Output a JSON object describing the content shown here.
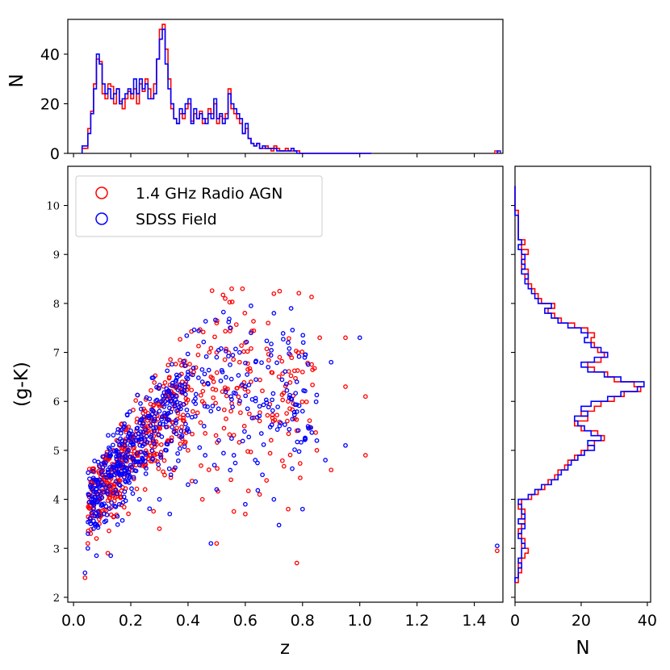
{
  "colors": {
    "radio": "#ff0000",
    "field": "#0000ff",
    "axis": "#000000"
  },
  "chart_data": [
    {
      "panel": "top-histogram",
      "type": "histogram",
      "xlabel": "",
      "ylabel": "N",
      "xlim": [
        -0.02,
        1.5
      ],
      "ylim": [
        0,
        54
      ],
      "yticks": [
        0,
        20,
        40
      ],
      "ytick_labels": [
        "0",
        "20",
        "40"
      ],
      "bin_edges": [
        0.03,
        0.05,
        0.06,
        0.07,
        0.08,
        0.09,
        0.1,
        0.11,
        0.12,
        0.13,
        0.14,
        0.15,
        0.16,
        0.17,
        0.18,
        0.19,
        0.2,
        0.21,
        0.22,
        0.23,
        0.24,
        0.25,
        0.26,
        0.27,
        0.28,
        0.29,
        0.3,
        0.31,
        0.32,
        0.33,
        0.34,
        0.35,
        0.36,
        0.37,
        0.38,
        0.39,
        0.4,
        0.41,
        0.42,
        0.43,
        0.44,
        0.45,
        0.46,
        0.47,
        0.48,
        0.49,
        0.5,
        0.51,
        0.52,
        0.53,
        0.54,
        0.55,
        0.56,
        0.57,
        0.58,
        0.59,
        0.6,
        0.61,
        0.62,
        0.63,
        0.64,
        0.65,
        0.66,
        0.67,
        0.68,
        0.69,
        0.7,
        0.71,
        0.72,
        0.73,
        0.74,
        0.75,
        0.76,
        0.77,
        0.78,
        0.79,
        0.8,
        0.81,
        0.82,
        0.83,
        0.84,
        0.85,
        0.86,
        0.87,
        0.88,
        0.89,
        0.9,
        0.91,
        0.92,
        0.93,
        0.94,
        0.95,
        0.96,
        0.97,
        0.98,
        0.99,
        1.0,
        1.01,
        1.02,
        1.03,
        1.04
      ],
      "series": [
        {
          "name": "1.4 GHz Radio AGN",
          "color": "#ff0000",
          "counts": [
            2,
            10,
            17,
            28,
            38,
            37,
            24,
            22,
            28,
            27,
            20,
            26,
            21,
            18,
            22,
            25,
            22,
            26,
            20,
            28,
            25,
            30,
            26,
            22,
            28,
            38,
            50,
            52,
            42,
            30,
            18,
            14,
            12,
            16,
            14,
            18,
            20,
            13,
            16,
            14,
            17,
            12,
            14,
            18,
            16,
            20,
            12,
            15,
            14,
            16,
            26,
            18,
            16,
            14,
            12,
            8,
            10,
            6,
            4,
            3,
            4,
            2,
            2,
            3,
            2,
            1,
            3,
            2,
            1,
            1,
            2,
            1,
            1,
            1,
            1,
            0,
            0,
            0,
            0,
            0,
            0,
            0,
            0,
            0,
            0,
            0,
            0,
            0,
            0,
            0,
            0,
            0,
            0,
            0,
            0,
            0,
            0,
            0,
            0,
            0
          ]
        },
        {
          "name": "SDSS Field",
          "color": "#0000ff",
          "counts": [
            3,
            8,
            16,
            26,
            40,
            36,
            28,
            24,
            26,
            22,
            24,
            26,
            20,
            22,
            24,
            26,
            24,
            30,
            24,
            30,
            26,
            28,
            22,
            22,
            24,
            38,
            46,
            50,
            36,
            26,
            20,
            14,
            12,
            18,
            16,
            20,
            22,
            12,
            18,
            14,
            16,
            14,
            12,
            16,
            14,
            22,
            14,
            16,
            12,
            14,
            24,
            20,
            18,
            16,
            14,
            8,
            12,
            6,
            4,
            3,
            4,
            2,
            3,
            2,
            2,
            2,
            2,
            1,
            1,
            1,
            1,
            1,
            2,
            1,
            0,
            0,
            0,
            0,
            0,
            0,
            0,
            0,
            0,
            0,
            0,
            0,
            0,
            0,
            0,
            0,
            0,
            0,
            0,
            0,
            0,
            0,
            0,
            0,
            0,
            0
          ]
        }
      ],
      "outlier_bins": [
        {
          "z": 1.48,
          "radio": 1,
          "field": 1
        }
      ]
    },
    {
      "panel": "scatter",
      "type": "scatter",
      "xlabel": "z",
      "ylabel": "(g-K)",
      "xlim": [
        -0.02,
        1.5
      ],
      "ylim": [
        1.9,
        10.8
      ],
      "xticks": [
        0.0,
        0.2,
        0.4,
        0.6,
        0.8,
        1.0,
        1.2,
        1.4
      ],
      "xtick_labels": [
        "0.0",
        "0.2",
        "0.4",
        "0.6",
        "0.8",
        "1.0",
        "1.2",
        "1.4"
      ],
      "yticks": [
        2,
        3,
        4,
        5,
        6,
        7,
        8,
        9,
        10
      ],
      "ytick_labels": [
        "2",
        "3",
        "4",
        "5",
        "6",
        "7",
        "8",
        "9",
        "10"
      ],
      "legend": {
        "position": "top-left",
        "entries": [
          "1.4 GHz Radio AGN",
          "SDSS Field"
        ]
      },
      "series": [
        {
          "name": "1.4 GHz Radio AGN",
          "color": "#ff0000",
          "points": [
            [
              0.04,
              2.4
            ],
            [
              0.05,
              3.1
            ],
            [
              0.06,
              3.6
            ],
            [
              0.07,
              3.9
            ],
            [
              0.08,
              4.1
            ],
            [
              0.09,
              4.3
            ],
            [
              0.1,
              4.6
            ],
            [
              0.11,
              4.4
            ],
            [
              0.12,
              4.8
            ],
            [
              0.13,
              4.2
            ],
            [
              0.14,
              5.0
            ],
            [
              0.15,
              4.6
            ],
            [
              0.16,
              5.1
            ],
            [
              0.17,
              4.8
            ],
            [
              0.18,
              5.2
            ],
            [
              0.2,
              5.3
            ],
            [
              0.22,
              5.4
            ],
            [
              0.24,
              5.6
            ],
            [
              0.26,
              5.5
            ],
            [
              0.28,
              5.8
            ],
            [
              0.3,
              5.9
            ],
            [
              0.32,
              6.0
            ],
            [
              0.34,
              6.2
            ],
            [
              0.36,
              6.1
            ],
            [
              0.38,
              6.4
            ],
            [
              0.4,
              6.3
            ],
            [
              0.42,
              6.6
            ],
            [
              0.45,
              6.0
            ],
            [
              0.48,
              6.5
            ],
            [
              0.5,
              7.0
            ],
            [
              0.52,
              6.2
            ],
            [
              0.55,
              5.8
            ],
            [
              0.58,
              6.8
            ],
            [
              0.6,
              7.2
            ],
            [
              0.62,
              6.4
            ],
            [
              0.65,
              5.6
            ],
            [
              0.68,
              7.6
            ],
            [
              0.7,
              8.2
            ],
            [
              0.72,
              6.9
            ],
            [
              0.75,
              6.0
            ],
            [
              0.78,
              5.4
            ],
            [
              0.8,
              6.6
            ],
            [
              0.85,
              5.0
            ],
            [
              0.9,
              4.6
            ],
            [
              0.95,
              6.3
            ],
            [
              1.02,
              6.1
            ],
            [
              1.02,
              4.9
            ],
            [
              1.48,
              2.95
            ],
            [
              0.78,
              2.7
            ],
            [
              0.5,
              3.1
            ],
            [
              0.3,
              3.4
            ],
            [
              0.12,
              2.9
            ],
            [
              0.25,
              4.2
            ],
            [
              0.35,
              4.6
            ],
            [
              0.45,
              4.0
            ],
            [
              0.55,
              4.4
            ],
            [
              0.65,
              4.1
            ],
            [
              0.75,
              3.8
            ],
            [
              0.6,
              3.7
            ],
            [
              0.4,
              5.0
            ],
            [
              0.33,
              5.2
            ],
            [
              0.27,
              4.9
            ],
            [
              0.19,
              4.5
            ],
            [
              0.09,
              3.5
            ],
            [
              0.08,
              3.2
            ],
            [
              0.53,
              8.1
            ],
            [
              0.72,
              8.25
            ],
            [
              0.86,
              7.3
            ],
            [
              0.95,
              7.3
            ],
            [
              0.5,
              7.6
            ]
          ]
        },
        {
          "name": "SDSS Field",
          "color": "#0000ff",
          "points": [
            [
              0.04,
              2.5
            ],
            [
              0.05,
              3.0
            ],
            [
              0.06,
              3.5
            ],
            [
              0.07,
              3.8
            ],
            [
              0.08,
              4.2
            ],
            [
              0.09,
              4.4
            ],
            [
              0.1,
              4.5
            ],
            [
              0.11,
              4.7
            ],
            [
              0.12,
              4.6
            ],
            [
              0.13,
              4.9
            ],
            [
              0.14,
              4.7
            ],
            [
              0.15,
              5.0
            ],
            [
              0.16,
              4.9
            ],
            [
              0.17,
              5.2
            ],
            [
              0.18,
              5.1
            ],
            [
              0.2,
              5.4
            ],
            [
              0.22,
              5.2
            ],
            [
              0.24,
              5.5
            ],
            [
              0.26,
              5.7
            ],
            [
              0.28,
              5.6
            ],
            [
              0.3,
              5.8
            ],
            [
              0.32,
              5.7
            ],
            [
              0.34,
              6.0
            ],
            [
              0.36,
              6.3
            ],
            [
              0.38,
              6.2
            ],
            [
              0.4,
              6.6
            ],
            [
              0.42,
              6.0
            ],
            [
              0.45,
              6.4
            ],
            [
              0.48,
              5.8
            ],
            [
              0.5,
              6.9
            ],
            [
              0.52,
              6.6
            ],
            [
              0.55,
              6.1
            ],
            [
              0.58,
              7.0
            ],
            [
              0.6,
              6.3
            ],
            [
              0.62,
              7.4
            ],
            [
              0.65,
              5.9
            ],
            [
              0.68,
              6.7
            ],
            [
              0.7,
              7.8
            ],
            [
              0.72,
              5.5
            ],
            [
              0.75,
              7.2
            ],
            [
              0.78,
              6.4
            ],
            [
              0.8,
              5.8
            ],
            [
              0.85,
              5.2
            ],
            [
              0.9,
              6.8
            ],
            [
              0.95,
              5.1
            ],
            [
              1.0,
              7.3
            ],
            [
              1.48,
              3.05
            ],
            [
              0.48,
              3.1
            ],
            [
              0.08,
              2.85
            ],
            [
              0.13,
              2.85
            ],
            [
              0.3,
              4.0
            ],
            [
              0.4,
              4.3
            ],
            [
              0.5,
              4.2
            ],
            [
              0.6,
              3.9
            ],
            [
              0.7,
              4.0
            ],
            [
              0.8,
              3.8
            ],
            [
              0.88,
              4.8
            ],
            [
              0.34,
              4.5
            ],
            [
              0.23,
              4.0
            ],
            [
              0.16,
              3.9
            ],
            [
              0.07,
              3.4
            ],
            [
              0.62,
              7.95
            ],
            [
              0.76,
              7.9
            ],
            [
              0.56,
              4.9
            ],
            [
              0.46,
              4.9
            ],
            [
              0.66,
              4.5
            ]
          ]
        }
      ]
    },
    {
      "panel": "right-histogram",
      "type": "histogram",
      "orientation": "horizontal",
      "xlabel": "N",
      "ylabel": "",
      "xlim": [
        0,
        41
      ],
      "ylim": [
        1.9,
        10.8
      ],
      "xticks": [
        0,
        20,
        40
      ],
      "xtick_labels": [
        "0",
        "20",
        "40"
      ],
      "bin_edges": [
        2.3,
        2.4,
        2.5,
        2.6,
        2.7,
        2.8,
        2.9,
        3.0,
        3.1,
        3.2,
        3.3,
        3.4,
        3.5,
        3.6,
        3.7,
        3.8,
        3.9,
        4.0,
        4.1,
        4.2,
        4.3,
        4.4,
        4.5,
        4.6,
        4.7,
        4.8,
        4.9,
        5.0,
        5.1,
        5.2,
        5.3,
        5.4,
        5.5,
        5.6,
        5.7,
        5.8,
        5.9,
        6.0,
        6.1,
        6.2,
        6.3,
        6.4,
        6.5,
        6.6,
        6.7,
        6.8,
        6.9,
        7.0,
        7.1,
        7.2,
        7.3,
        7.4,
        7.5,
        7.6,
        7.7,
        7.8,
        7.9,
        8.0,
        8.1,
        8.2,
        8.3,
        8.4,
        8.5,
        8.6,
        8.7,
        8.8,
        8.9,
        9.0,
        9.1,
        9.2,
        9.3,
        9.4,
        9.5,
        9.6,
        9.7,
        9.8,
        9.9,
        10.0,
        10.1,
        10.2,
        10.3,
        10.4
      ],
      "series": [
        {
          "name": "1.4 GHz Radio AGN",
          "color": "#ff0000",
          "counts": [
            1,
            1,
            2,
            1,
            2,
            3,
            4,
            2,
            3,
            2,
            1,
            2,
            3,
            2,
            3,
            1,
            2,
            5,
            7,
            9,
            10,
            12,
            13,
            15,
            16,
            18,
            20,
            22,
            24,
            27,
            25,
            20,
            18,
            22,
            20,
            24,
            26,
            30,
            33,
            38,
            36,
            30,
            28,
            24,
            22,
            26,
            27,
            25,
            24,
            23,
            24,
            22,
            18,
            14,
            12,
            10,
            12,
            8,
            7,
            6,
            5,
            4,
            3,
            4,
            2,
            3,
            2,
            4,
            2,
            3,
            1,
            1,
            1,
            1,
            1,
            1,
            0,
            0,
            0,
            0,
            0
          ]
        },
        {
          "name": "SDSS Field",
          "color": "#0000ff",
          "counts": [
            0,
            1,
            1,
            2,
            1,
            2,
            2,
            3,
            2,
            1,
            2,
            3,
            1,
            3,
            2,
            2,
            1,
            4,
            6,
            8,
            11,
            13,
            14,
            16,
            17,
            19,
            21,
            24,
            22,
            26,
            23,
            21,
            19,
            18,
            22,
            20,
            23,
            28,
            32,
            37,
            39,
            32,
            27,
            22,
            20,
            24,
            28,
            26,
            23,
            21,
            22,
            20,
            16,
            13,
            11,
            9,
            11,
            7,
            6,
            5,
            4,
            3,
            4,
            2,
            3,
            2,
            3,
            2,
            1,
            2,
            1,
            1,
            1,
            1,
            1,
            0,
            0,
            0,
            0,
            0,
            0
          ]
        }
      ]
    }
  ]
}
